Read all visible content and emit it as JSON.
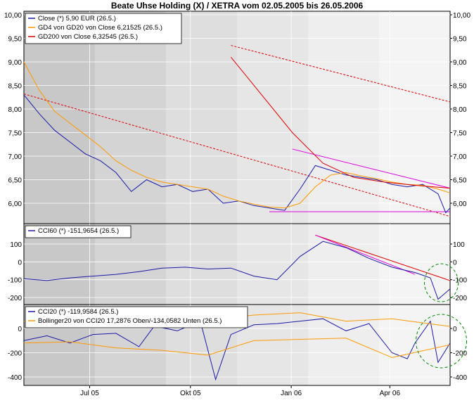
{
  "title": "Beate Uhse Holding (X) / XETRA vom 02.05.2005 bis 26.05.2006",
  "colors": {
    "close": "#1a1aa6",
    "gd4": "#ff9900",
    "gd200": "#dd0000",
    "magenta": "#dd00dd",
    "circle": "#008800",
    "bollinger": "#ff9900",
    "cci": "#1a1aa6"
  },
  "x_axis": {
    "labels": [
      "Jul 05",
      "Okt 05",
      "Jan 06",
      "Apr 06"
    ],
    "label_dates": [
      "2005-07-01",
      "2005-10-01",
      "2006-01-01",
      "2006-04-01"
    ]
  },
  "chart_data": [
    {
      "type": "line",
      "panel": "price",
      "x_range": [
        "2005-05-02",
        "2006-05-26"
      ],
      "ylim": [
        5.7,
        10.0
      ],
      "yticks": [
        "10,00",
        "9,50",
        "9,00",
        "8,50",
        "8,00",
        "7,50",
        "7,00",
        "6,50",
        "6,00"
      ],
      "legend": [
        "Close (*) 5,90 EUR (26.5.)",
        "GD4 von GD20 von Close 6,21525 (26.5.)",
        "GD200 von Close 6,32545 (26.5.)"
      ],
      "series": [
        {
          "name": "Close (*) 5,90 EUR (26.5.)",
          "x": [
            "2005-05-02",
            "2005-05-16",
            "2005-05-30",
            "2005-06-13",
            "2005-06-27",
            "2005-07-11",
            "2005-07-25",
            "2005-08-08",
            "2005-08-22",
            "2005-09-05",
            "2005-09-19",
            "2005-10-03",
            "2005-10-17",
            "2005-10-31",
            "2005-11-14",
            "2005-11-28",
            "2005-12-12",
            "2005-12-26",
            "2006-01-09",
            "2006-01-23",
            "2006-02-06",
            "2006-02-20",
            "2006-03-06",
            "2006-03-20",
            "2006-04-03",
            "2006-04-17",
            "2006-05-01",
            "2006-05-15",
            "2006-05-22",
            "2006-05-26"
          ],
          "y": [
            8.3,
            7.9,
            7.55,
            7.3,
            7.05,
            6.9,
            6.65,
            6.25,
            6.5,
            6.35,
            6.4,
            6.25,
            6.3,
            6.0,
            6.05,
            5.95,
            5.9,
            5.85,
            6.3,
            6.8,
            6.7,
            6.6,
            6.55,
            6.5,
            6.4,
            6.35,
            6.4,
            6.2,
            5.8,
            5.9
          ]
        },
        {
          "name": "GD4 von GD20 von Close 6,21525 (26.5.)",
          "x": [
            "2005-05-02",
            "2005-05-16",
            "2005-05-30",
            "2005-06-13",
            "2005-06-27",
            "2005-07-11",
            "2005-07-25",
            "2005-08-08",
            "2005-08-22",
            "2005-09-05",
            "2005-09-19",
            "2005-10-03",
            "2005-10-17",
            "2005-10-31",
            "2005-11-14",
            "2005-11-28",
            "2005-12-12",
            "2005-12-26",
            "2006-01-09",
            "2006-01-23",
            "2006-02-06",
            "2006-02-20",
            "2006-03-06",
            "2006-03-20",
            "2006-04-03",
            "2006-04-17",
            "2006-05-01",
            "2006-05-15",
            "2006-05-26"
          ],
          "y": [
            9.0,
            8.4,
            7.95,
            7.7,
            7.45,
            7.2,
            6.9,
            6.7,
            6.55,
            6.45,
            6.4,
            6.35,
            6.3,
            6.15,
            6.05,
            5.98,
            5.92,
            5.9,
            6.0,
            6.35,
            6.6,
            6.65,
            6.58,
            6.52,
            6.45,
            6.4,
            6.38,
            6.3,
            6.22
          ]
        },
        {
          "name": "GD200 von Close 6,32545 (26.5.)",
          "x": [
            "2005-11-07",
            "2005-12-05",
            "2006-01-02",
            "2006-01-30",
            "2006-02-27",
            "2006-03-27",
            "2006-04-24",
            "2006-05-26"
          ],
          "y": [
            9.1,
            8.3,
            7.5,
            6.85,
            6.55,
            6.45,
            6.38,
            6.32
          ]
        }
      ],
      "annotations": [
        {
          "label": "red dashed trendline",
          "x": [
            "2005-05-02",
            "2006-05-26"
          ],
          "y": [
            8.32,
            5.72
          ]
        },
        {
          "label": "red dashed trendline upper",
          "x": [
            "2005-11-07",
            "2006-05-26"
          ],
          "y": [
            9.35,
            8.15
          ]
        },
        {
          "label": "magenta channel upper",
          "x": [
            "2006-01-02",
            "2006-05-26"
          ],
          "y": [
            7.15,
            6.32
          ]
        },
        {
          "label": "magenta support",
          "x": [
            "2005-12-12",
            "2006-05-26"
          ],
          "y": [
            5.82,
            5.82
          ]
        }
      ]
    },
    {
      "type": "line",
      "panel": "cci60",
      "ylim": [
        -230,
        170
      ],
      "yticks": [
        "100",
        "0",
        "-100",
        "-200"
      ],
      "legend": [
        "CCI60 (*) -151,9654 (26.5.)"
      ],
      "series": [
        {
          "name": "CCI60 (*) -151,9654 (26.5.)",
          "x": [
            "2005-05-02",
            "2005-05-23",
            "2005-06-13",
            "2005-07-04",
            "2005-07-25",
            "2005-08-15",
            "2005-09-05",
            "2005-09-26",
            "2005-10-17",
            "2005-11-07",
            "2005-11-28",
            "2005-12-19",
            "2006-01-09",
            "2006-01-30",
            "2006-02-20",
            "2006-03-13",
            "2006-04-03",
            "2006-04-24",
            "2006-05-08",
            "2006-05-15",
            "2006-05-26"
          ],
          "y": [
            -95,
            -105,
            -90,
            -80,
            -70,
            -55,
            -35,
            -30,
            -40,
            -35,
            -80,
            -100,
            30,
            115,
            80,
            20,
            -30,
            -60,
            -90,
            -210,
            -152
          ]
        }
      ],
      "annotations": [
        {
          "label": "red trendline",
          "x": [
            "2006-01-23",
            "2006-05-26"
          ],
          "y": [
            150,
            -105
          ]
        },
        {
          "label": "magenta trendline",
          "x": [
            "2006-01-23",
            "2006-04-24"
          ],
          "y": [
            150,
            -70
          ]
        }
      ]
    },
    {
      "type": "line",
      "panel": "cci20",
      "ylim": [
        -430,
        180
      ],
      "yticks": [
        "0",
        "-200",
        "-400"
      ],
      "legend": [
        "CCI20 (*) -119,9584 (26.5.)",
        "Bollinger20 von CCI20 17,2876 Oben/-134,0582 Unten (26.5.)"
      ],
      "series": [
        {
          "name": "CCI20 (*) -119,9584 (26.5.)",
          "x": [
            "2005-05-02",
            "2005-05-23",
            "2005-06-13",
            "2005-07-04",
            "2005-07-25",
            "2005-08-15",
            "2005-08-29",
            "2005-09-19",
            "2005-10-10",
            "2005-10-24",
            "2005-11-07",
            "2005-11-28",
            "2005-12-19",
            "2006-01-09",
            "2006-01-30",
            "2006-02-20",
            "2006-03-13",
            "2006-04-03",
            "2006-04-17",
            "2006-04-24",
            "2006-05-08",
            "2006-05-15",
            "2006-05-26"
          ],
          "y": [
            -100,
            -60,
            -120,
            -50,
            -40,
            -150,
            20,
            -20,
            60,
            -420,
            -50,
            30,
            40,
            60,
            80,
            -20,
            40,
            -200,
            -250,
            -120,
            60,
            -280,
            -120
          ]
        },
        {
          "name": "Bollinger20 von CCI20 17,2876 Oben/-134,0582 Unten (26.5.)",
          "x": [
            "2005-05-02",
            "2005-06-13",
            "2005-07-25",
            "2005-09-05",
            "2005-10-17",
            "2005-11-28",
            "2006-01-09",
            "2006-02-20",
            "2006-04-03",
            "2006-05-26"
          ],
          "y": [
            60,
            90,
            80,
            120,
            70,
            110,
            130,
            60,
            80,
            17
          ]
        },
        {
          "name": "Bollinger20 lower",
          "x": [
            "2005-05-02",
            "2005-06-13",
            "2005-07-25",
            "2005-09-05",
            "2005-10-17",
            "2005-11-28",
            "2006-01-09",
            "2006-02-20",
            "2006-04-03",
            "2006-05-26"
          ],
          "y": [
            -120,
            -110,
            -160,
            -180,
            -220,
            -100,
            -90,
            -80,
            -240,
            -134
          ]
        }
      ]
    }
  ]
}
